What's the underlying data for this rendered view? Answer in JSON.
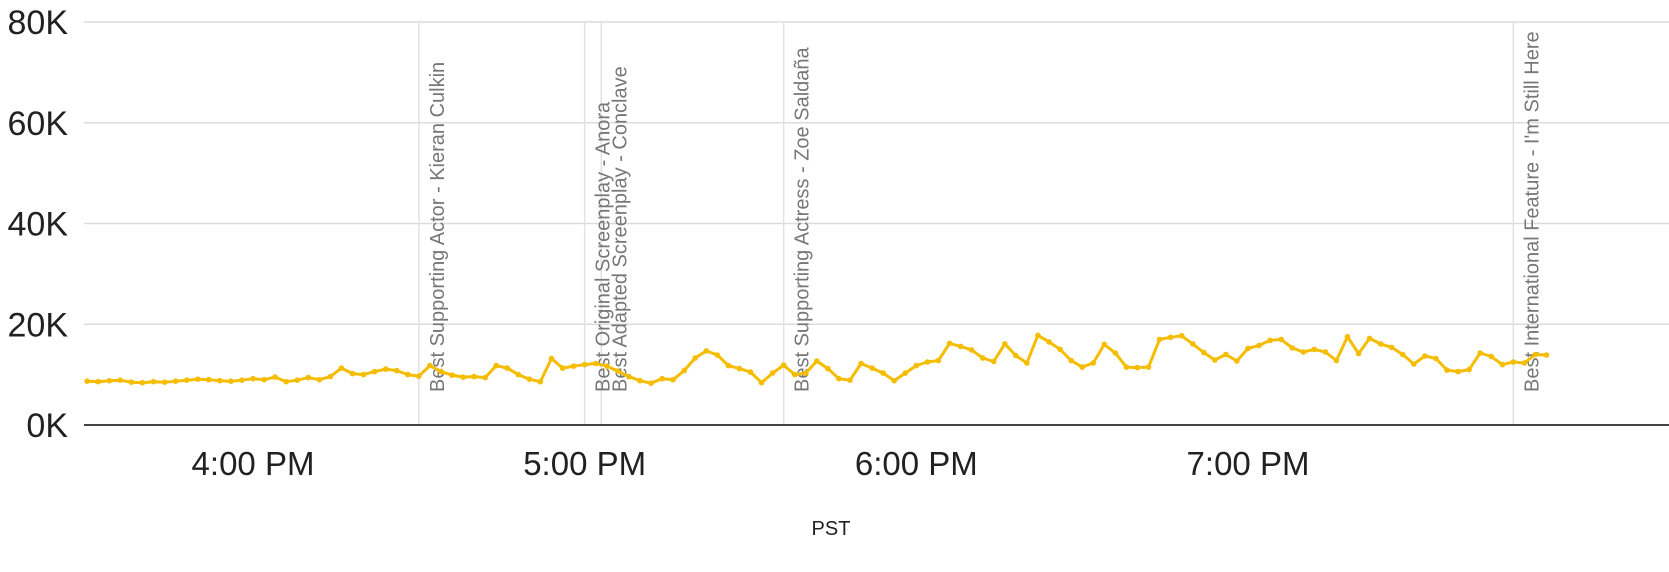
{
  "chart_data": {
    "type": "line",
    "title": "",
    "xlabel": "PST",
    "ylabel": "",
    "xlim": [
      "15:30",
      "19:59"
    ],
    "ylim": [
      0,
      80000
    ],
    "yticks": [
      {
        "value": 0,
        "label": "0K"
      },
      {
        "value": 20000,
        "label": "20K"
      },
      {
        "value": 40000,
        "label": "40K"
      },
      {
        "value": 60000,
        "label": "60K"
      },
      {
        "value": 80000,
        "label": "80K"
      }
    ],
    "xticks": [
      {
        "value": "16:00",
        "label": "4:00 PM"
      },
      {
        "value": "17:00",
        "label": "5:00 PM"
      },
      {
        "value": "18:00",
        "label": "6:00 PM"
      },
      {
        "value": "19:00",
        "label": "7:00 PM"
      }
    ],
    "grid": true,
    "color": "#f5bd00",
    "series": [
      {
        "points": [
          [
            "15:30",
            8700
          ],
          [
            "15:32",
            8600
          ],
          [
            "15:34",
            8800
          ],
          [
            "15:36",
            8900
          ],
          [
            "15:38",
            8500
          ],
          [
            "15:40",
            8400
          ],
          [
            "15:42",
            8600
          ],
          [
            "15:44",
            8500
          ],
          [
            "15:46",
            8700
          ],
          [
            "15:48",
            8900
          ],
          [
            "15:50",
            9100
          ],
          [
            "15:52",
            9000
          ],
          [
            "15:54",
            8800
          ],
          [
            "15:56",
            8700
          ],
          [
            "15:58",
            8900
          ],
          [
            "16:00",
            9200
          ],
          [
            "16:02",
            9000
          ],
          [
            "16:04",
            9500
          ],
          [
            "16:06",
            8600
          ],
          [
            "16:08",
            8900
          ],
          [
            "16:10",
            9400
          ],
          [
            "16:12",
            9000
          ],
          [
            "16:14",
            9600
          ],
          [
            "16:16",
            11300
          ],
          [
            "16:18",
            10200
          ],
          [
            "16:20",
            10000
          ],
          [
            "16:22",
            10600
          ],
          [
            "16:24",
            11100
          ],
          [
            "16:26",
            10800
          ],
          [
            "16:28",
            10000
          ],
          [
            "16:30",
            9700
          ],
          [
            "16:32",
            11800
          ],
          [
            "16:34",
            10600
          ],
          [
            "16:36",
            9900
          ],
          [
            "16:38",
            9500
          ],
          [
            "16:40",
            9600
          ],
          [
            "16:42",
            9400
          ],
          [
            "16:44",
            11800
          ],
          [
            "16:46",
            11300
          ],
          [
            "16:48",
            10000
          ],
          [
            "16:50",
            9100
          ],
          [
            "16:52",
            8600
          ],
          [
            "16:54",
            13200
          ],
          [
            "16:56",
            11300
          ],
          [
            "16:58",
            11700
          ],
          [
            "17:00",
            12000
          ],
          [
            "17:02",
            12200
          ],
          [
            "17:04",
            11700
          ],
          [
            "17:06",
            10700
          ],
          [
            "17:08",
            9600
          ],
          [
            "17:10",
            8800
          ],
          [
            "17:12",
            8300
          ],
          [
            "17:14",
            9200
          ],
          [
            "17:16",
            9000
          ],
          [
            "17:18",
            10800
          ],
          [
            "17:20",
            13300
          ],
          [
            "17:22",
            14700
          ],
          [
            "17:24",
            13900
          ],
          [
            "17:26",
            11800
          ],
          [
            "17:28",
            11200
          ],
          [
            "17:30",
            10500
          ],
          [
            "17:32",
            8400
          ],
          [
            "17:34",
            10300
          ],
          [
            "17:36",
            11900
          ],
          [
            "17:38",
            10000
          ],
          [
            "17:40",
            10300
          ],
          [
            "17:42",
            12700
          ],
          [
            "17:44",
            11200
          ],
          [
            "17:46",
            9200
          ],
          [
            "17:48",
            8900
          ],
          [
            "17:50",
            12200
          ],
          [
            "17:52",
            11300
          ],
          [
            "17:54",
            10300
          ],
          [
            "17:56",
            8800
          ],
          [
            "17:58",
            10300
          ],
          [
            "18:00",
            11800
          ],
          [
            "18:02",
            12500
          ],
          [
            "18:04",
            12800
          ],
          [
            "18:06",
            16200
          ],
          [
            "18:08",
            15600
          ],
          [
            "18:10",
            14900
          ],
          [
            "18:12",
            13300
          ],
          [
            "18:14",
            12600
          ],
          [
            "18:16",
            16100
          ],
          [
            "18:18",
            13800
          ],
          [
            "18:20",
            12300
          ],
          [
            "18:22",
            17800
          ],
          [
            "18:24",
            16500
          ],
          [
            "18:26",
            15000
          ],
          [
            "18:28",
            12800
          ],
          [
            "18:30",
            11500
          ],
          [
            "18:32",
            12300
          ],
          [
            "18:34",
            16000
          ],
          [
            "18:36",
            14300
          ],
          [
            "18:38",
            11500
          ],
          [
            "18:40",
            11400
          ],
          [
            "18:42",
            11500
          ],
          [
            "18:44",
            17000
          ],
          [
            "18:46",
            17400
          ],
          [
            "18:48",
            17700
          ],
          [
            "18:50",
            16100
          ],
          [
            "18:52",
            14400
          ],
          [
            "18:54",
            12900
          ],
          [
            "18:56",
            14000
          ],
          [
            "18:58",
            12700
          ],
          [
            "19:00",
            15200
          ],
          [
            "19:02",
            15800
          ],
          [
            "19:04",
            16800
          ],
          [
            "19:06",
            17000
          ],
          [
            "19:08",
            15300
          ],
          [
            "19:10",
            14500
          ],
          [
            "19:12",
            15000
          ],
          [
            "19:14",
            14500
          ],
          [
            "19:16",
            12800
          ],
          [
            "19:18",
            17500
          ],
          [
            "19:20",
            14200
          ],
          [
            "19:22",
            17200
          ],
          [
            "19:24",
            16100
          ],
          [
            "19:26",
            15400
          ],
          [
            "19:28",
            14000
          ],
          [
            "19:30",
            12100
          ],
          [
            "19:32",
            13700
          ],
          [
            "19:34",
            13200
          ],
          [
            "19:36",
            10900
          ],
          [
            "19:38",
            10600
          ],
          [
            "19:40",
            11000
          ],
          [
            "19:42",
            14300
          ],
          [
            "19:44",
            13600
          ],
          [
            "19:46",
            12000
          ],
          [
            "19:48",
            12500
          ],
          [
            "19:50",
            12300
          ],
          [
            "19:52",
            14000
          ],
          [
            "19:54",
            13900
          ]
        ]
      }
    ],
    "annotations": [
      {
        "x": "16:30",
        "label": "Best Supporting Actor - Kieran Culkin"
      },
      {
        "x": "17:00",
        "label": "Best Original Screenplay - Anora"
      },
      {
        "x": "17:03",
        "label": "Best Adapted Screenplay - Conclave"
      },
      {
        "x": "17:36",
        "label": "Best Supporting Actress - Zoe Saldaña"
      },
      {
        "x": "19:48",
        "label": "Best International Feature - I'm Still Here"
      }
    ]
  }
}
